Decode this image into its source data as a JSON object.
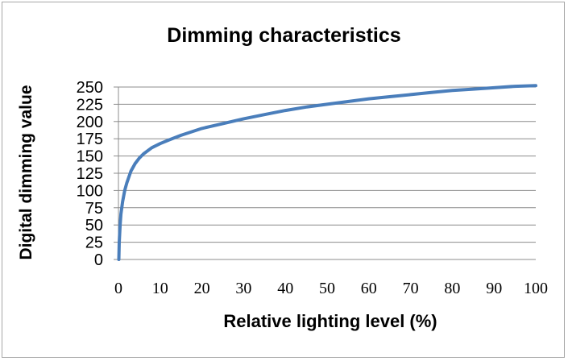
{
  "chart_data": {
    "type": "line",
    "title": "Dimming characteristics",
    "xlabel": "Relative lighting level (%)",
    "ylabel": "Digital dimming value",
    "xlim": [
      0,
      100
    ],
    "ylim": [
      0,
      250
    ],
    "x_ticks": [
      0,
      10,
      20,
      30,
      40,
      50,
      60,
      70,
      80,
      90,
      100
    ],
    "y_ticks": [
      0,
      25,
      50,
      75,
      100,
      125,
      150,
      175,
      200,
      225,
      250
    ],
    "grid": "horizontal",
    "legend": "none",
    "color": "#4a7ebb",
    "series": [
      {
        "x": [
          0.1,
          0.2,
          0.4,
          0.6,
          1,
          1.5,
          2,
          3,
          4,
          5,
          6,
          8,
          10,
          12,
          15,
          20,
          25,
          30,
          35,
          40,
          45,
          50,
          55,
          60,
          65,
          70,
          75,
          80,
          85,
          90,
          95,
          100
        ],
        "y": [
          0,
          25,
          50,
          66,
          84,
          100,
          111,
          128,
          139,
          147,
          153,
          162,
          168,
          173,
          180,
          190,
          197,
          204,
          210,
          216,
          221,
          225,
          229,
          233,
          236,
          239,
          242,
          245,
          247,
          249,
          251,
          252
        ]
      }
    ]
  }
}
